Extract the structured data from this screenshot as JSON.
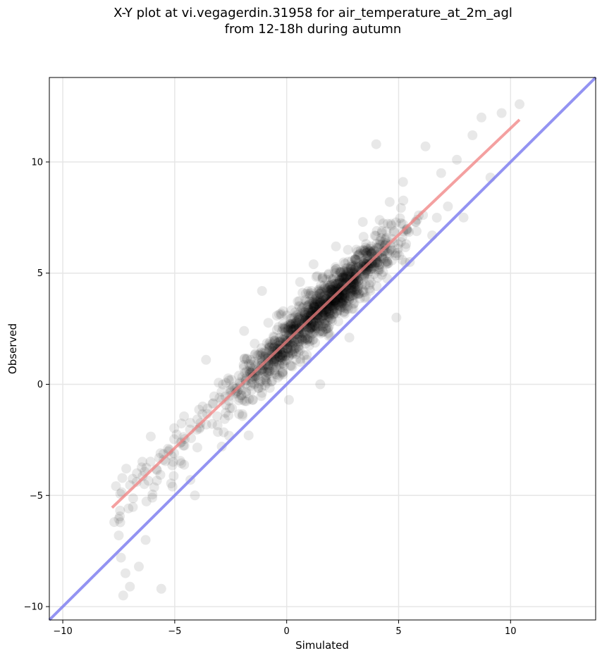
{
  "figure": {
    "title_line1": "X-Y plot at vi.vegagerdin.31958 for air_temperature_at_2m_agl",
    "title_line2": "from 12-18h during autumn"
  },
  "chart_data": {
    "type": "scatter",
    "title": "X-Y plot at vi.vegagerdin.31958 for air_temperature_at_2m_agl from 12-18h during autumn",
    "xlabel": "Simulated",
    "ylabel": "Observed",
    "xlim": [
      -10.6,
      13.8
    ],
    "ylim": [
      -10.6,
      13.8
    ],
    "xticks": [
      -10,
      -5,
      0,
      5,
      10
    ],
    "yticks": [
      -10,
      -5,
      0,
      5,
      10
    ],
    "xtick_labels": [
      "−10",
      "−5",
      "0",
      "5",
      "10"
    ],
    "ytick_labels": [
      "−10",
      "−5",
      "0",
      "5",
      "10"
    ],
    "grid": true,
    "colors": {
      "points": "#000000",
      "fit_line": "#f08080",
      "identity_line": "#8080f0",
      "grid": "#e6e6e6"
    },
    "points_approx_count": 1400,
    "points_sample": [
      [
        -7.7,
        -6.2
      ],
      [
        -7.5,
        -6.8
      ],
      [
        -7.4,
        -7.8
      ],
      [
        -7.2,
        -8.5
      ],
      [
        -7.3,
        -9.5
      ],
      [
        -7.0,
        -9.1
      ],
      [
        -6.6,
        -8.2
      ],
      [
        -6.3,
        -7.0
      ],
      [
        -5.6,
        -9.2
      ],
      [
        -6.0,
        -5.1
      ],
      [
        -5.5,
        -3.4
      ],
      [
        -5.3,
        -2.9
      ],
      [
        -5.1,
        -4.6
      ],
      [
        -4.7,
        -2.6
      ],
      [
        -4.3,
        -4.3
      ],
      [
        -4.1,
        -5.0
      ],
      [
        -3.9,
        -2.0
      ],
      [
        -3.6,
        1.1
      ],
      [
        -3.0,
        -0.6
      ],
      [
        -2.9,
        -2.8
      ],
      [
        -2.6,
        -1.4
      ],
      [
        -2.3,
        -0.2
      ],
      [
        -1.9,
        2.4
      ],
      [
        -1.7,
        -2.3
      ],
      [
        -1.4,
        0.9
      ],
      [
        -1.1,
        4.2
      ],
      [
        -0.8,
        1.8
      ],
      [
        -0.4,
        0.3
      ],
      [
        0.0,
        3.1
      ],
      [
        0.1,
        -0.7
      ],
      [
        0.4,
        2.5
      ],
      [
        0.6,
        4.6
      ],
      [
        0.9,
        1.1
      ],
      [
        1.2,
        5.4
      ],
      [
        1.5,
        0.0
      ],
      [
        1.9,
        3.3
      ],
      [
        2.2,
        6.2
      ],
      [
        2.5,
        4.0
      ],
      [
        2.8,
        2.1
      ],
      [
        3.1,
        5.6
      ],
      [
        3.4,
        7.3
      ],
      [
        3.7,
        4.3
      ],
      [
        4.0,
        10.8
      ],
      [
        4.3,
        6.4
      ],
      [
        4.6,
        8.2
      ],
      [
        4.9,
        3.0
      ],
      [
        5.2,
        9.1
      ],
      [
        5.5,
        5.5
      ],
      [
        5.9,
        7.6
      ],
      [
        6.2,
        10.7
      ],
      [
        6.5,
        6.7
      ],
      [
        6.9,
        9.5
      ],
      [
        7.2,
        8.0
      ],
      [
        7.6,
        10.1
      ],
      [
        7.9,
        7.5
      ],
      [
        8.3,
        11.2
      ],
      [
        8.7,
        12.0
      ],
      [
        9.1,
        9.3
      ],
      [
        9.6,
        12.2
      ],
      [
        10.4,
        12.6
      ]
    ],
    "fit_line": [
      [
        -7.8,
        -5.55
      ],
      [
        10.4,
        11.9
      ]
    ],
    "identity_line": [
      [
        -10.6,
        -10.6
      ],
      [
        13.8,
        13.8
      ]
    ]
  }
}
